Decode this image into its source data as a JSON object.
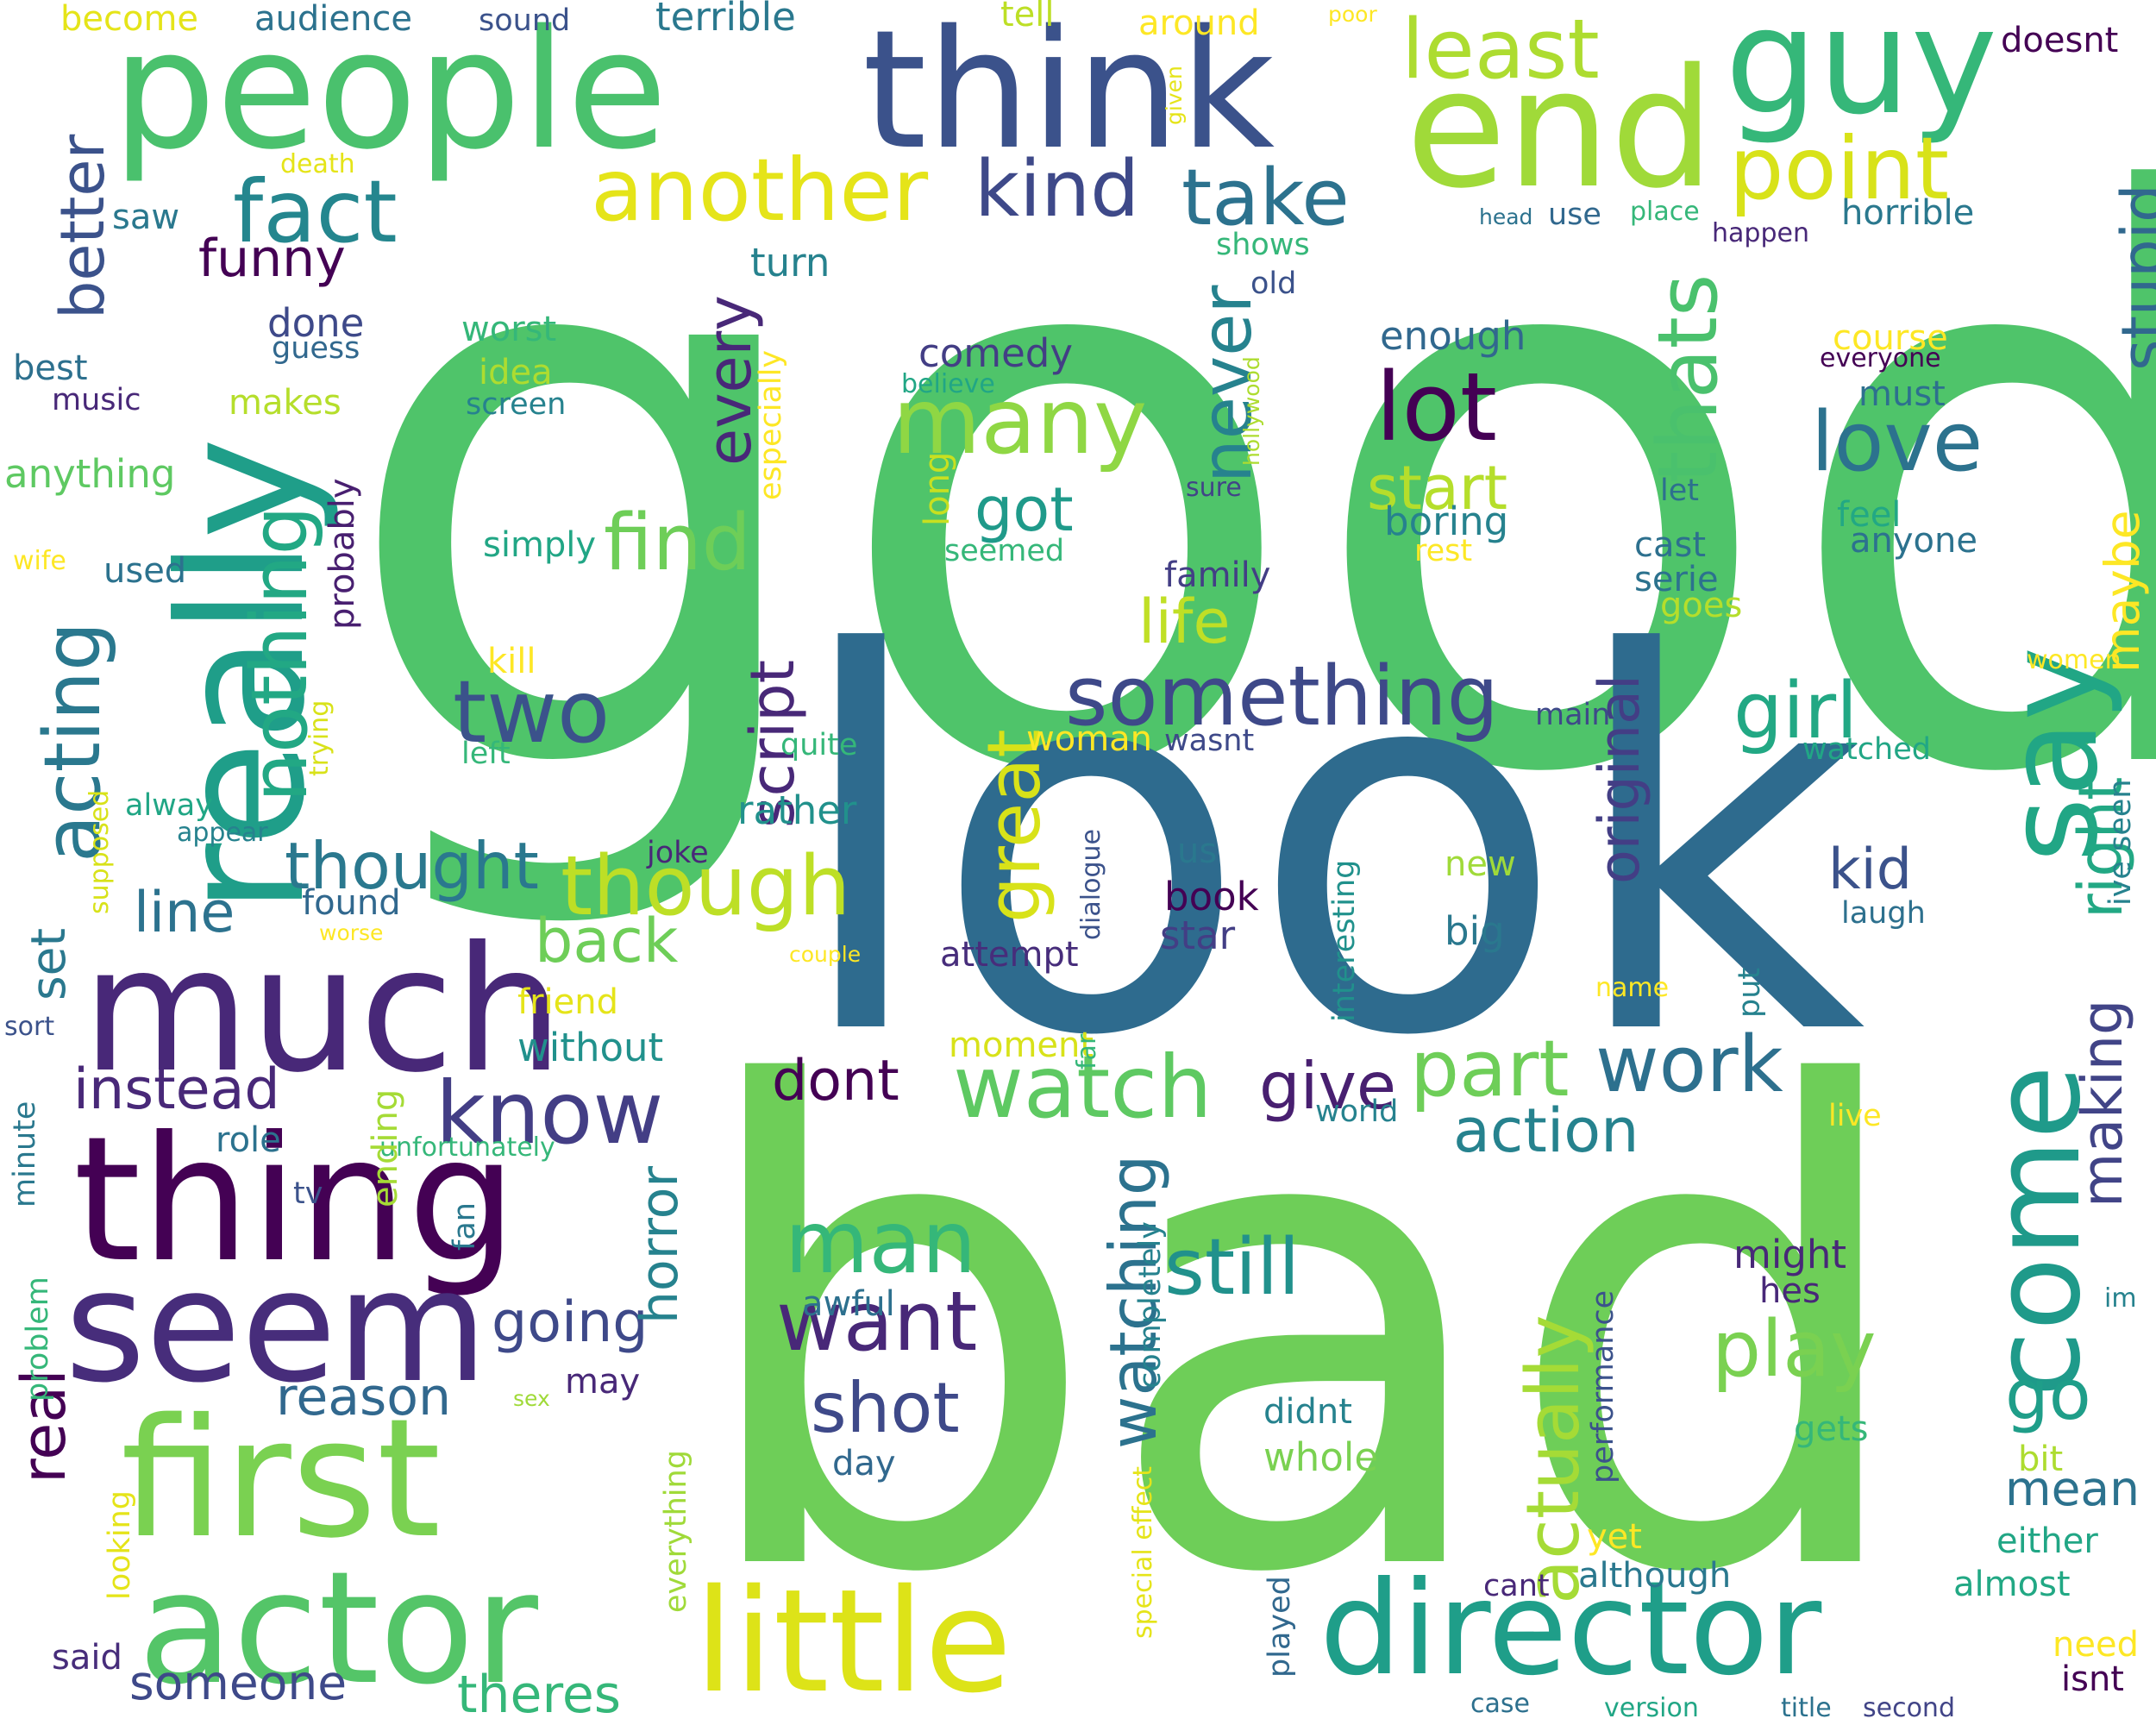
{
  "words": [
    {
      "text": "good",
      "color": "#4fc46a"
    },
    {
      "text": "look",
      "color": "#2e6b8e"
    },
    {
      "text": "bad",
      "color": "#6ece58"
    },
    {
      "text": "people",
      "color": "#4ac16d"
    },
    {
      "text": "think",
      "color": "#3b528b"
    },
    {
      "text": "end",
      "color": "#a0da39"
    },
    {
      "text": "guy",
      "color": "#35b779"
    },
    {
      "text": "really",
      "color": "#1f9e89"
    },
    {
      "text": "say",
      "color": "#21a685"
    },
    {
      "text": "come",
      "color": "#1f9a8a"
    },
    {
      "text": "much",
      "color": "#482878"
    },
    {
      "text": "thing",
      "color": "#440154"
    },
    {
      "text": "seem",
      "color": "#472d7b"
    },
    {
      "text": "first",
      "color": "#7ad151"
    },
    {
      "text": "actor",
      "color": "#54c568"
    },
    {
      "text": "little",
      "color": "#dde318"
    },
    {
      "text": "director",
      "color": "#1f9e89"
    },
    {
      "text": "least",
      "color": "#addc30"
    },
    {
      "text": "point",
      "color": "#d8e219"
    },
    {
      "text": "another",
      "color": "#e5e419"
    },
    {
      "text": "fact",
      "color": "#24868e"
    },
    {
      "text": "kind",
      "color": "#3e4989"
    },
    {
      "text": "take",
      "color": "#2c728e"
    },
    {
      "text": "better",
      "color": "#3b528b"
    },
    {
      "text": "funny",
      "color": "#440154"
    },
    {
      "text": "acting",
      "color": "#2a788e"
    },
    {
      "text": "nothing",
      "color": "#22a884"
    },
    {
      "text": "find",
      "color": "#6ece58"
    },
    {
      "text": "many",
      "color": "#8fd744"
    },
    {
      "text": "never",
      "color": "#26828e"
    },
    {
      "text": "lot",
      "color": "#440154"
    },
    {
      "text": "thats",
      "color": "#4ac16d"
    },
    {
      "text": "love",
      "color": "#2c728e"
    },
    {
      "text": "stupid",
      "color": "#31688e"
    },
    {
      "text": "start",
      "color": "#b5de2b"
    },
    {
      "text": "two",
      "color": "#3b528b"
    },
    {
      "text": "something",
      "color": "#3e4989"
    },
    {
      "text": "girl",
      "color": "#22a884"
    },
    {
      "text": "thought",
      "color": "#2a788e"
    },
    {
      "text": "though",
      "color": "#bddf26"
    },
    {
      "text": "script",
      "color": "#482878"
    },
    {
      "text": "great",
      "color": "#d8e219"
    },
    {
      "text": "watch",
      "color": "#5ec962"
    },
    {
      "text": "part",
      "color": "#6ece58"
    },
    {
      "text": "work",
      "color": "#2d708e"
    },
    {
      "text": "know",
      "color": "#433e85"
    },
    {
      "text": "give",
      "color": "#481f70"
    },
    {
      "text": "action",
      "color": "#26828e"
    },
    {
      "text": "original",
      "color": "#433e85"
    },
    {
      "text": "every",
      "color": "#482878"
    },
    {
      "text": "got",
      "color": "#1f9a8a"
    },
    {
      "text": "life",
      "color": "#c0df25"
    },
    {
      "text": "line",
      "color": "#2c728e"
    },
    {
      "text": "back",
      "color": "#6ece58"
    },
    {
      "text": "instead",
      "color": "#482878"
    },
    {
      "text": "set",
      "color": "#2a788e"
    },
    {
      "text": "real",
      "color": "#440154"
    },
    {
      "text": "going",
      "color": "#3e4989"
    },
    {
      "text": "reason",
      "color": "#31688e"
    },
    {
      "text": "horror",
      "color": "#26828e"
    },
    {
      "text": "watching",
      "color": "#2c728e"
    },
    {
      "text": "still",
      "color": "#21918c"
    },
    {
      "text": "man",
      "color": "#35b779"
    },
    {
      "text": "want",
      "color": "#482878"
    },
    {
      "text": "shot",
      "color": "#3e4989"
    },
    {
      "text": "play",
      "color": "#7ad151"
    },
    {
      "text": "actually",
      "color": "#a5db36"
    },
    {
      "text": "go",
      "color": "#1f9e89"
    },
    {
      "text": "making",
      "color": "#414487"
    },
    {
      "text": "right",
      "color": "#22a884"
    },
    {
      "text": "maybe",
      "color": "#fde725"
    },
    {
      "text": "mean",
      "color": "#2c728e"
    },
    {
      "text": "kid",
      "color": "#3b528b"
    },
    {
      "text": "dont",
      "color": "#440154"
    },
    {
      "text": "someone",
      "color": "#3e4989"
    },
    {
      "text": "theres",
      "color": "#35b779"
    },
    {
      "text": "become",
      "color": "#e5e419"
    },
    {
      "text": "audience",
      "color": "#2c728e"
    },
    {
      "text": "sound",
      "color": "#3b528b"
    },
    {
      "text": "terrible",
      "color": "#2a788e"
    },
    {
      "text": "tell",
      "color": "#bddf26"
    },
    {
      "text": "around",
      "color": "#fde725"
    },
    {
      "text": "poor",
      "color": "#fde725"
    },
    {
      "text": "doesnt",
      "color": "#440154"
    },
    {
      "text": "death",
      "color": "#e5e419"
    },
    {
      "text": "given",
      "color": "#e5e419"
    },
    {
      "text": "head",
      "color": "#2c728e"
    },
    {
      "text": "use",
      "color": "#31688e"
    },
    {
      "text": "place",
      "color": "#35b779"
    },
    {
      "text": "horrible",
      "color": "#2a788e"
    },
    {
      "text": "happen",
      "color": "#482878"
    },
    {
      "text": "saw",
      "color": "#2a788e"
    },
    {
      "text": "turn",
      "color": "#26828e"
    },
    {
      "text": "shows",
      "color": "#35b779"
    },
    {
      "text": "old",
      "color": "#3b528b"
    },
    {
      "text": "done",
      "color": "#3e4989"
    },
    {
      "text": "guess",
      "color": "#31688e"
    },
    {
      "text": "comedy",
      "color": "#433e85"
    },
    {
      "text": "hollywood",
      "color": "#addc30"
    },
    {
      "text": "enough",
      "color": "#31688e"
    },
    {
      "text": "course",
      "color": "#fde725"
    },
    {
      "text": "everyone",
      "color": "#440154"
    },
    {
      "text": "best",
      "color": "#2d708e"
    },
    {
      "text": "music",
      "color": "#482878"
    },
    {
      "text": "worst",
      "color": "#35b779"
    },
    {
      "text": "idea",
      "color": "#addc30"
    },
    {
      "text": "makes",
      "color": "#b5de2b"
    },
    {
      "text": "screen",
      "color": "#26828e"
    },
    {
      "text": "believe",
      "color": "#21a685"
    },
    {
      "text": "must",
      "color": "#2d708e"
    },
    {
      "text": "anything",
      "color": "#5ec962"
    },
    {
      "text": "probably",
      "color": "#481f70"
    },
    {
      "text": "especially",
      "color": "#fde725"
    },
    {
      "text": "long",
      "color": "#c8e020"
    },
    {
      "text": "sure",
      "color": "#414487"
    },
    {
      "text": "let",
      "color": "#2d708e"
    },
    {
      "text": "simply",
      "color": "#21a685"
    },
    {
      "text": "seemed",
      "color": "#35b779"
    },
    {
      "text": "boring",
      "color": "#26828e"
    },
    {
      "text": "rest",
      "color": "#fde725"
    },
    {
      "text": "cast",
      "color": "#2d708e"
    },
    {
      "text": "feel",
      "color": "#22a884"
    },
    {
      "text": "anyone",
      "color": "#2c728e"
    },
    {
      "text": "wife",
      "color": "#fde725"
    },
    {
      "text": "used",
      "color": "#2c728e"
    },
    {
      "text": "family",
      "color": "#433e85"
    },
    {
      "text": "serie",
      "color": "#2c728e"
    },
    {
      "text": "goes",
      "color": "#b5de2b"
    },
    {
      "text": "kill",
      "color": "#fde725"
    },
    {
      "text": "trying",
      "color": "#d8e219"
    },
    {
      "text": "women",
      "color": "#fde725"
    },
    {
      "text": "left",
      "color": "#35b779"
    },
    {
      "text": "quite",
      "color": "#35b779"
    },
    {
      "text": "woman",
      "color": "#fde725"
    },
    {
      "text": "wasnt",
      "color": "#3e4989"
    },
    {
      "text": "main",
      "color": "#3e4989"
    },
    {
      "text": "watched",
      "color": "#21a685"
    },
    {
      "text": "alway",
      "color": "#21a685"
    },
    {
      "text": "supposed",
      "color": "#d8e219"
    },
    {
      "text": "appear",
      "color": "#26828e"
    },
    {
      "text": "rather",
      "color": "#21918c"
    },
    {
      "text": "dialogue",
      "color": "#3b528b"
    },
    {
      "text": "interesting",
      "color": "#21918c"
    },
    {
      "text": "ive seen",
      "color": "#26828e"
    },
    {
      "text": "joke",
      "color": "#482878"
    },
    {
      "text": "us",
      "color": "#2a788e"
    },
    {
      "text": "new",
      "color": "#a0da39"
    },
    {
      "text": "found",
      "color": "#31688e"
    },
    {
      "text": "book",
      "color": "#440154"
    },
    {
      "text": "laugh",
      "color": "#2d708e"
    },
    {
      "text": "worse",
      "color": "#fde725"
    },
    {
      "text": "couple",
      "color": "#fde725"
    },
    {
      "text": "attempt",
      "color": "#472d7b"
    },
    {
      "text": "star",
      "color": "#433e85"
    },
    {
      "text": "big",
      "color": "#2a788e"
    },
    {
      "text": "name",
      "color": "#fde725"
    },
    {
      "text": "put",
      "color": "#26828e"
    },
    {
      "text": "friend",
      "color": "#e5e419"
    },
    {
      "text": "without",
      "color": "#21918c"
    },
    {
      "text": "moment",
      "color": "#d8e219"
    },
    {
      "text": "far",
      "color": "#35b779"
    },
    {
      "text": "sort",
      "color": "#3b528b"
    },
    {
      "text": "minute",
      "color": "#2a788e"
    },
    {
      "text": "role",
      "color": "#2c728e"
    },
    {
      "text": "unfortunately",
      "color": "#35b779"
    },
    {
      "text": "world",
      "color": "#26828e"
    },
    {
      "text": "live",
      "color": "#fde725"
    },
    {
      "text": "tv",
      "color": "#3b528b"
    },
    {
      "text": "ending",
      "color": "#a5db36"
    },
    {
      "text": "fan",
      "color": "#2a788e"
    },
    {
      "text": "problem",
      "color": "#35b779"
    },
    {
      "text": "performance",
      "color": "#3b528b"
    },
    {
      "text": "completely",
      "color": "#26828e"
    },
    {
      "text": "might",
      "color": "#482878"
    },
    {
      "text": "hes",
      "color": "#482878"
    },
    {
      "text": "awful",
      "color": "#2d708e"
    },
    {
      "text": "may",
      "color": "#482878"
    },
    {
      "text": "im",
      "color": "#26828e"
    },
    {
      "text": "sex",
      "color": "#a0da39"
    },
    {
      "text": "didnt",
      "color": "#26828e"
    },
    {
      "text": "whole",
      "color": "#7ad151"
    },
    {
      "text": "day",
      "color": "#31688e"
    },
    {
      "text": "gets",
      "color": "#35b779"
    },
    {
      "text": "bit",
      "color": "#addc30"
    },
    {
      "text": "either",
      "color": "#21a685"
    },
    {
      "text": "special effect",
      "color": "#e5e419"
    },
    {
      "text": "looking",
      "color": "#e5e419"
    },
    {
      "text": "everything",
      "color": "#a0da39"
    },
    {
      "text": "yet",
      "color": "#fde725"
    },
    {
      "text": "although",
      "color": "#2a788e"
    },
    {
      "text": "cant",
      "color": "#482878"
    },
    {
      "text": "almost",
      "color": "#22a884"
    },
    {
      "text": "played",
      "color": "#31688e"
    },
    {
      "text": "need",
      "color": "#fde725"
    },
    {
      "text": "said",
      "color": "#472d7b"
    },
    {
      "text": "case",
      "color": "#2d708e"
    },
    {
      "text": "version",
      "color": "#21a685"
    },
    {
      "text": "title",
      "color": "#2c728e"
    },
    {
      "text": "second",
      "color": "#414487"
    },
    {
      "text": "isnt",
      "color": "#440154"
    }
  ]
}
